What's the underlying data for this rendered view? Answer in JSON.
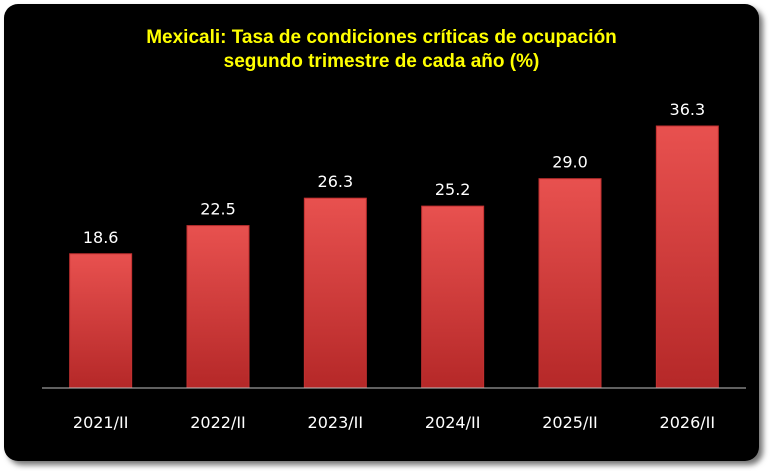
{
  "colors": {
    "background": "#000000",
    "title": "#ffff00",
    "bar": "#e0403f",
    "bar_dark": "#b82a2a",
    "text": "#ffffff",
    "axis": "#bfbfbf"
  },
  "chart_data": {
    "type": "bar",
    "title": "Mexicali: Tasa de condiciones críticas de ocupación",
    "subtitle": "segundo trimestre de cada año (%)",
    "categories": [
      "2021/II",
      "2022/II",
      "2023/II",
      "2024/II",
      "2025/II",
      "2026/II"
    ],
    "values": [
      18.6,
      22.5,
      26.3,
      25.2,
      29.0,
      36.3
    ],
    "value_labels": [
      "18.6",
      "22.5",
      "26.3",
      "25.2",
      "29.0",
      "36.3"
    ],
    "ylim": [
      0,
      40
    ],
    "grid": false,
    "legend": "none"
  }
}
